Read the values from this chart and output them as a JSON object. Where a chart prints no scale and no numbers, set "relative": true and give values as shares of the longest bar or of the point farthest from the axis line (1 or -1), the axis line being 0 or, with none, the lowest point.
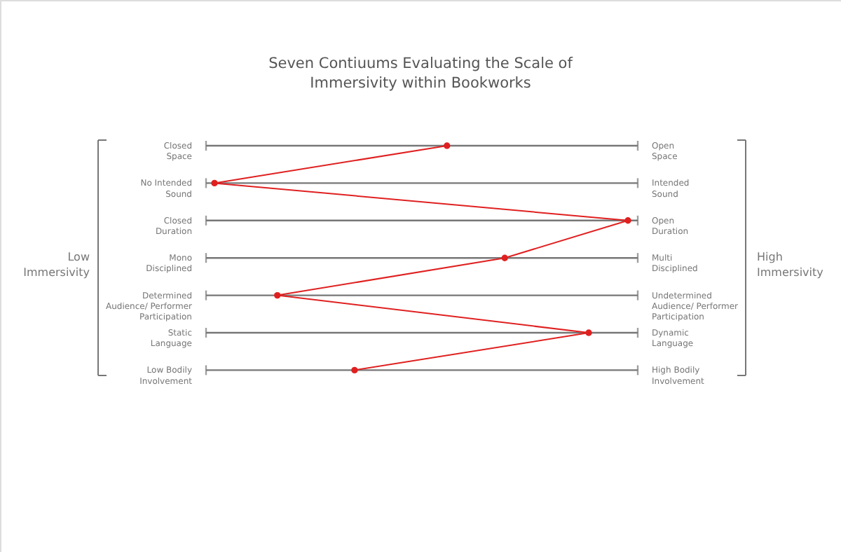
{
  "chart_data": {
    "type": "line",
    "title": "Seven Contiuums Evaluating the Scale of\nImmersivity within Bookworks",
    "orientation": "horizontal",
    "relative": true,
    "marker": "circle",
    "line_style": "solid",
    "annotations": [
      "Low\nImmersivity",
      "High\nImmersivity"
    ],
    "categories": [
      "Closed\nSpace",
      "No Intended\nSound",
      "Closed\nDuration",
      "Mono\nDisciplined",
      "Determined\nAudience/ Performer\nParticipation",
      "Static\nLanguage",
      "Low Bodily\nInvolvement"
    ],
    "y2_categories": [
      "Open\nSpace",
      "Intended\nSound",
      "Open\nDuration",
      "Multi\nDisciplined",
      "Undetermined\nAudience/ Performer\nParticipation",
      "Dynamic\nLanguage",
      "High Bodily\nInvolvement"
    ],
    "series": [
      {
        "color": "#e02020",
        "values": [
          0.571,
          0.02,
          1,
          0.708,
          0.169,
          0.907,
          0.352
        ]
      }
    ]
  }
}
